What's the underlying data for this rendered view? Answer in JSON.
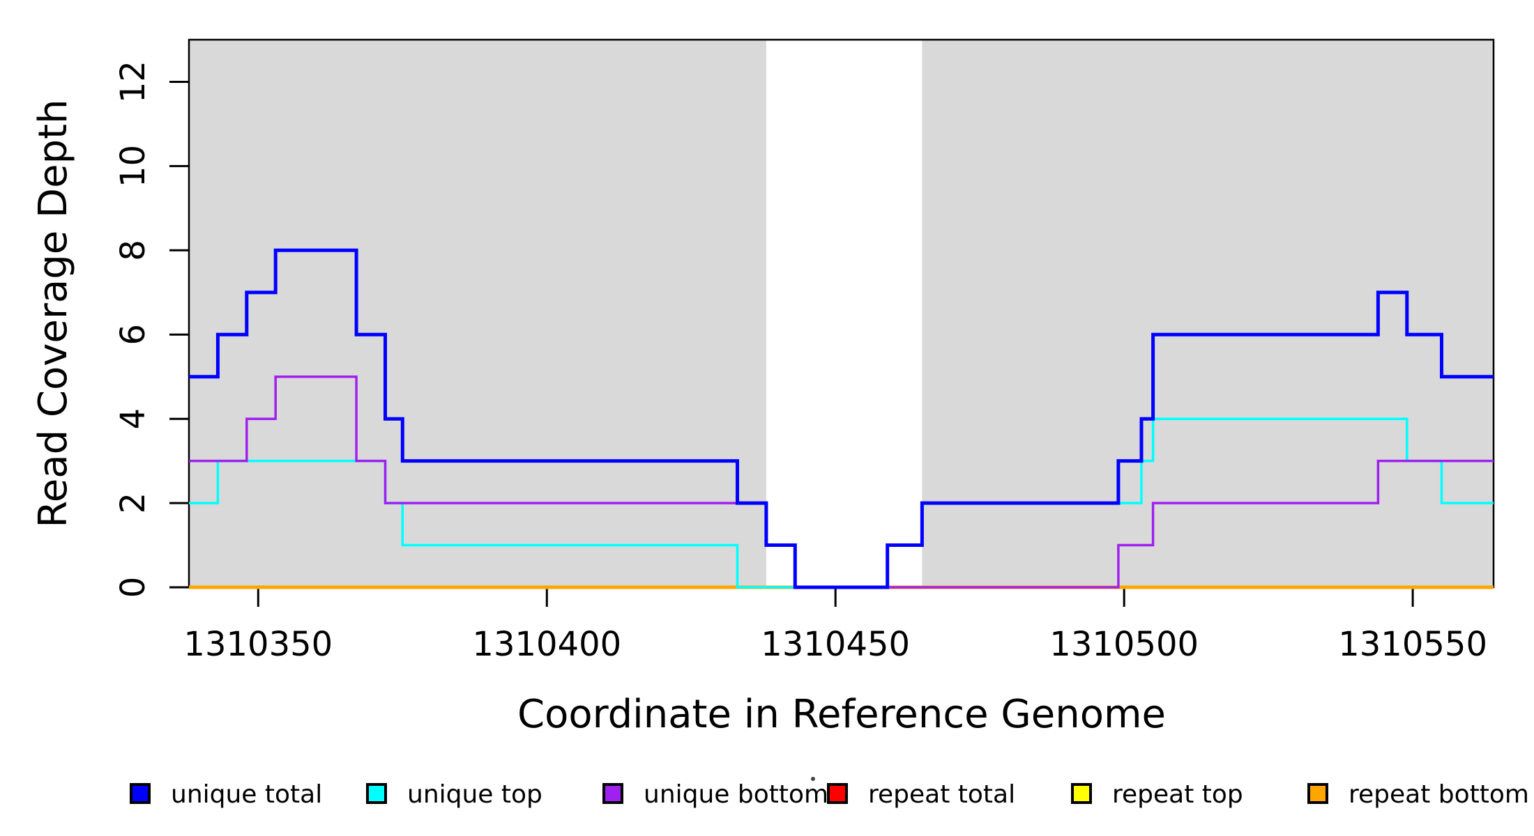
{
  "figure": {
    "background": "#FFFFFF",
    "plot_box_color": "#000000",
    "shading_color": "#D9D9D9"
  },
  "chart_data": {
    "type": "line",
    "subtype": "step",
    "title": "",
    "xlabel": "Coordinate in Reference Genome",
    "ylabel": "Read Coverage Depth",
    "xlim": [
      1310338,
      1310564
    ],
    "ylim": [
      0,
      13
    ],
    "x_ticks": [
      1310350,
      1310400,
      1310450,
      1310500,
      1310550
    ],
    "y_ticks": [
      0,
      2,
      4,
      6,
      8,
      10,
      12
    ],
    "grid": false,
    "legend_position": "bottom",
    "shaded_regions": [
      {
        "x0": 1310338,
        "x1": 1310438,
        "color": "#D9D9D9"
      },
      {
        "x0": 1310465,
        "x1": 1310564,
        "color": "#D9D9D9"
      }
    ],
    "series": [
      {
        "name": "unique total",
        "color": "#0000FF",
        "width": 5,
        "draw_order": 6,
        "points": [
          [
            1310338,
            5
          ],
          [
            1310343,
            6
          ],
          [
            1310348,
            7
          ],
          [
            1310353,
            8
          ],
          [
            1310367,
            6
          ],
          [
            1310372,
            4
          ],
          [
            1310375,
            3
          ],
          [
            1310433,
            2
          ],
          [
            1310438,
            1
          ],
          [
            1310443,
            0
          ],
          [
            1310459,
            1
          ],
          [
            1310465,
            2
          ],
          [
            1310499,
            3
          ],
          [
            1310503,
            4
          ],
          [
            1310505,
            6
          ],
          [
            1310544,
            7
          ],
          [
            1310549,
            6
          ],
          [
            1310555,
            5
          ],
          [
            1310564,
            5
          ]
        ]
      },
      {
        "name": "unique top",
        "color": "#00FFFF",
        "width": 3.5,
        "draw_order": 4,
        "points": [
          [
            1310338,
            2
          ],
          [
            1310343,
            3
          ],
          [
            1310372,
            2
          ],
          [
            1310375,
            1
          ],
          [
            1310433,
            0
          ],
          [
            1310459,
            1
          ],
          [
            1310465,
            2
          ],
          [
            1310503,
            3
          ],
          [
            1310505,
            4
          ],
          [
            1310549,
            3
          ],
          [
            1310555,
            2
          ],
          [
            1310564,
            2
          ]
        ]
      },
      {
        "name": "unique bottom",
        "color": "#A020F0",
        "width": 3.5,
        "draw_order": 5,
        "points": [
          [
            1310338,
            3
          ],
          [
            1310348,
            4
          ],
          [
            1310353,
            5
          ],
          [
            1310367,
            3
          ],
          [
            1310372,
            2
          ],
          [
            1310438,
            1
          ],
          [
            1310443,
            0
          ],
          [
            1310499,
            1
          ],
          [
            1310505,
            2
          ],
          [
            1310544,
            3
          ],
          [
            1310564,
            3
          ]
        ]
      },
      {
        "name": "repeat total",
        "color": "#FF0000",
        "width": 3.5,
        "draw_order": 1,
        "points": [
          [
            1310338,
            0
          ],
          [
            1310564,
            0
          ]
        ]
      },
      {
        "name": "repeat top",
        "color": "#FFFF00",
        "width": 3.5,
        "draw_order": 2,
        "points": [
          [
            1310338,
            0
          ],
          [
            1310564,
            0
          ]
        ]
      },
      {
        "name": "repeat bottom",
        "color": "#FFA500",
        "width": 5,
        "draw_order": 3,
        "points": [
          [
            1310338,
            0
          ],
          [
            1310564,
            0
          ]
        ]
      }
    ],
    "legend": [
      {
        "label": "unique total",
        "color": "#0000FF"
      },
      {
        "label": "unique top",
        "color": "#00FFFF"
      },
      {
        "label": "unique bottom",
        "color": "#A020F0"
      },
      {
        "label": "repeat total",
        "color": "#FF0000"
      },
      {
        "label": "repeat top",
        "color": "#FFFF00"
      },
      {
        "label": "repeat bottom",
        "color": "#FFA500"
      }
    ]
  }
}
